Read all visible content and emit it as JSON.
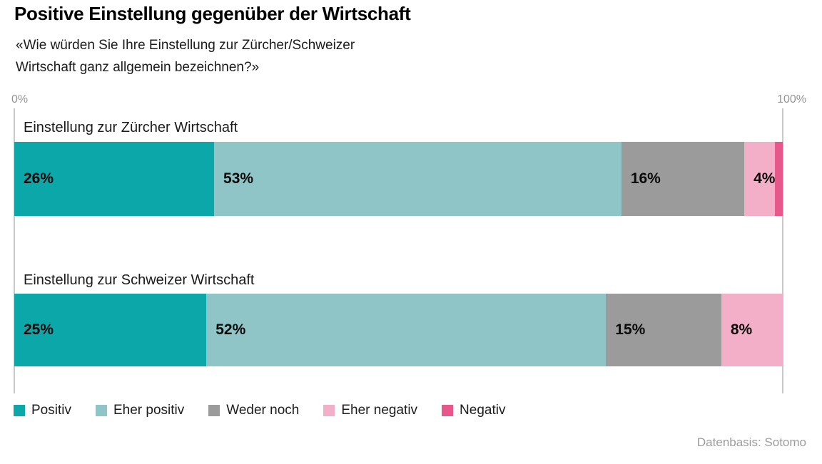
{
  "title": "Positive Einstellung gegenüber der Wirtschaft",
  "subtitle_lines": [
    "«Wie würden Sie Ihre Einstellung zur Zürcher/Schweizer",
    "Wirtschaft ganz allgemein bezeichnen?»"
  ],
  "source": "Datenbasis: Sotomo",
  "colors": {
    "positiv": "#0ba7a9",
    "eher_positiv": "#8fc5c6",
    "weder_noch": "#9b9b9b",
    "eher_negativ": "#f3afc7",
    "negativ": "#e8578b",
    "axis_line": "#c9c9c9",
    "tick_text": "#949494",
    "source_text": "#9b9b9b"
  },
  "chart_data": {
    "type": "bar",
    "orientation": "horizontal-stacked",
    "title": "Positive Einstellung gegenüber der Wirtschaft",
    "subtitle": "«Wie würden Sie Ihre Einstellung zur Zürcher/Schweizer Wirtschaft ganz allgemein bezeichnen?»",
    "xlim": [
      0,
      100
    ],
    "axis_ticks": {
      "min_label": "0%",
      "max_label": "100%"
    },
    "categories": [
      "Einstellung zur Zürcher Wirtschaft",
      "Einstellung zur Schweizer Wirtschaft"
    ],
    "series": [
      {
        "name": "Positiv",
        "color": "#0ba7a9",
        "values": [
          26,
          25
        ]
      },
      {
        "name": "Eher positiv",
        "color": "#8fc5c6",
        "values": [
          53,
          52
        ]
      },
      {
        "name": "Weder noch",
        "color": "#9b9b9b",
        "values": [
          16,
          15
        ]
      },
      {
        "name": "Eher negativ",
        "color": "#f3afc7",
        "values": [
          4,
          8
        ]
      },
      {
        "name": "Negativ",
        "color": "#e8578b",
        "values": [
          1,
          0
        ]
      }
    ],
    "value_suffix": "%",
    "label_min_value": 4,
    "legend_position": "bottom",
    "grid": false
  }
}
